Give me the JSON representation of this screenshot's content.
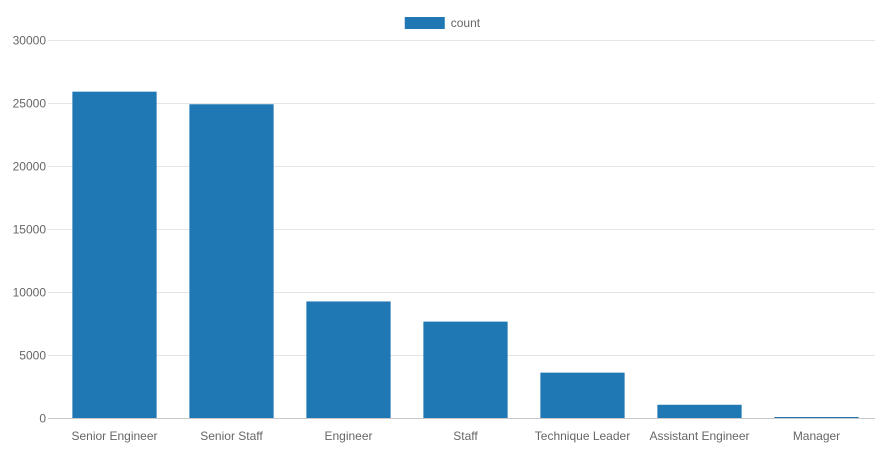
{
  "chart_data": {
    "type": "bar",
    "categories": [
      "Senior Engineer",
      "Senior Staff",
      "Engineer",
      "Staff",
      "Technique Leader",
      "Assistant Engineer",
      "Manager"
    ],
    "series": [
      {
        "name": "count",
        "values": [
          25900,
          24900,
          9250,
          7650,
          3600,
          1050,
          24
        ]
      }
    ],
    "title": "",
    "xlabel": "",
    "ylabel": "",
    "ylim": [
      0,
      30000
    ],
    "yticks": [
      0,
      5000,
      10000,
      15000,
      20000,
      25000,
      30000
    ],
    "grid": true,
    "legend_position": "top-center",
    "colors": {
      "bar": "#1f77b4",
      "grid": "#e5e5e5",
      "axis": "#c8c8c8",
      "text": "#666666"
    }
  }
}
